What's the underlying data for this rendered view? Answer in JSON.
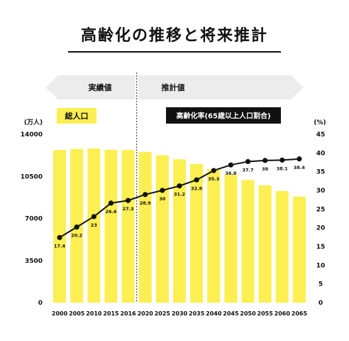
{
  "chart_data": {
    "type": "bar",
    "title": "高齢化の推移と将来推計",
    "categories": [
      "2000",
      "2005",
      "2010",
      "2015",
      "2016",
      "2020",
      "2025",
      "2030",
      "2035",
      "2040",
      "2045",
      "2050",
      "2055",
      "2060",
      "2065"
    ],
    "series": [
      {
        "name": "総人口",
        "type": "bar",
        "axis": "left",
        "unit": "(万人)",
        "values": [
          12693,
          12777,
          12806,
          12709,
          12693,
          12532,
          12254,
          11913,
          11522,
          11092,
          10642,
          10192,
          9744,
          9284,
          8808
        ]
      },
      {
        "name": "高齢化率(65歳以上人口割合)",
        "type": "line",
        "axis": "right",
        "unit": "(%)",
        "values": [
          17.4,
          20.2,
          23,
          26.6,
          27.3,
          28.9,
          30,
          31.2,
          32.8,
          35.3,
          36.8,
          37.7,
          38,
          38.1,
          38.4
        ],
        "labels": [
          "17.4",
          "20.2",
          "23",
          "26.6",
          "27.3",
          "28.9",
          "30",
          "31.2",
          "32.8",
          "35.3",
          "36.8",
          "37.7",
          "38",
          "38.1",
          "38.4"
        ]
      }
    ],
    "y_left": {
      "ylim": [
        0,
        14000
      ],
      "ticks": [
        0,
        3500,
        7000,
        10500,
        14000
      ],
      "tick_labels": [
        "0",
        "3500",
        "7000",
        "10500",
        "14000"
      ],
      "unit_label": "(万人)"
    },
    "y_right": {
      "ylim": [
        0,
        45
      ],
      "ticks": [
        0,
        5,
        10,
        15,
        20,
        25,
        30,
        35,
        40,
        45
      ],
      "tick_labels": [
        "0",
        "5",
        "10",
        "15",
        "20",
        "25",
        "30",
        "35",
        "40",
        "45"
      ],
      "unit_label": "(%)"
    },
    "periods": [
      {
        "label": "実績値",
        "from": "2000",
        "to": "2016"
      },
      {
        "label": "推計値",
        "from": "2020",
        "to": "2065"
      }
    ],
    "colors": {
      "bar": "#fbef52",
      "line": "#111111",
      "arrow": "#ececec",
      "bar_legend_bg": "#fbef52",
      "line_legend_bg": "#111111"
    }
  }
}
